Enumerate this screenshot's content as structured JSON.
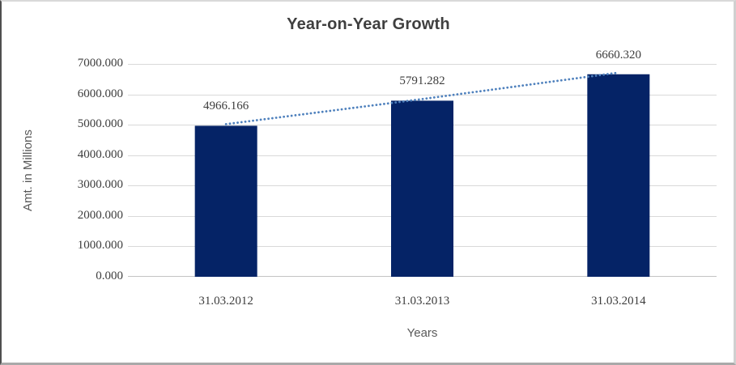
{
  "chart_data": {
    "type": "bar",
    "title": "Year-on-Year Growth",
    "categories": [
      "31.03.2012",
      "31.03.2013",
      "31.03.2014"
    ],
    "values": [
      4966.166,
      5791.282,
      6660.32
    ],
    "data_labels": [
      "4966.166",
      "5791.282",
      "6660.320"
    ],
    "xlabel": "Years",
    "ylabel": "Amt. in Millions",
    "ylim": [
      0,
      7000
    ],
    "yticks": {
      "values": [
        0,
        1000,
        2000,
        3000,
        4000,
        5000,
        6000,
        7000
      ],
      "labels": [
        "0.000",
        "1000.000",
        "2000.000",
        "3000.000",
        "4000.000",
        "5000.000",
        "6000.000",
        "7000.000"
      ]
    },
    "grid": true,
    "legend": "none",
    "trendline": {
      "style": "dotted",
      "through": "bar-tops"
    },
    "colors": {
      "bar": "#052366",
      "gridline": "#d9d9d9",
      "axis_line": "#c3c3c3",
      "title_text": "#3f3f3f",
      "tick_text": "#3d3d3d",
      "axis_title_text": "#595959",
      "trendline": "#4f81bd"
    }
  }
}
